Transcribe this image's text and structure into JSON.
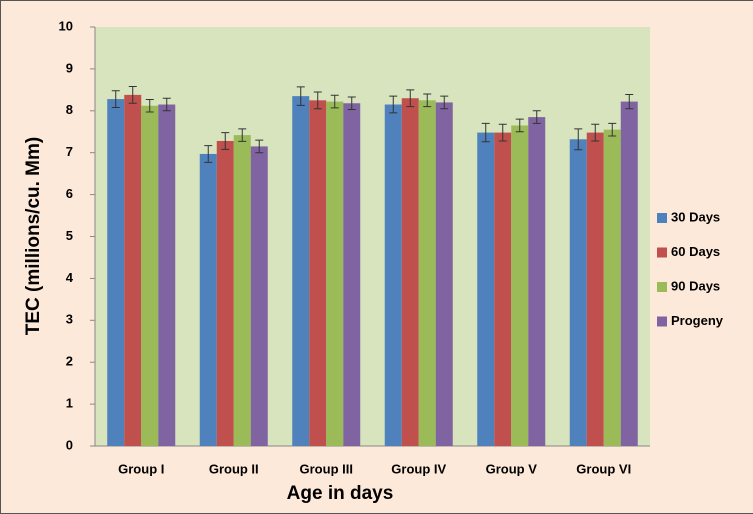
{
  "chart_data": {
    "type": "bar",
    "x_label": "Age in days",
    "y_label": "TEC (millions/cu. Mm)",
    "categories": [
      "Group I",
      "Group II",
      "Group III",
      "Group IV",
      "Group V",
      "Group VI"
    ],
    "series": [
      {
        "name": "30 Days",
        "color": "#4f81bd",
        "values": [
          8.28,
          6.97,
          8.35,
          8.15,
          7.48,
          7.32
        ],
        "errors": [
          0.2,
          0.2,
          0.22,
          0.2,
          0.22,
          0.25
        ]
      },
      {
        "name": "60 Days",
        "color": "#c0504d",
        "values": [
          8.38,
          7.28,
          8.25,
          8.3,
          7.48,
          7.48
        ],
        "errors": [
          0.2,
          0.2,
          0.2,
          0.2,
          0.2,
          0.2
        ]
      },
      {
        "name": "90 Days",
        "color": "#9bbb59",
        "values": [
          8.12,
          7.42,
          8.22,
          8.25,
          7.65,
          7.55
        ],
        "errors": [
          0.15,
          0.15,
          0.15,
          0.15,
          0.15,
          0.15
        ]
      },
      {
        "name": "Progeny",
        "color": "#8064a2",
        "values": [
          8.15,
          7.15,
          8.18,
          8.2,
          7.85,
          8.22
        ],
        "errors": [
          0.15,
          0.15,
          0.15,
          0.15,
          0.15,
          0.17
        ]
      }
    ],
    "ylim": [
      0,
      10
    ],
    "yticks": [
      0,
      1,
      2,
      3,
      4,
      5,
      6,
      7,
      8,
      9,
      10
    ],
    "legend": "right"
  }
}
